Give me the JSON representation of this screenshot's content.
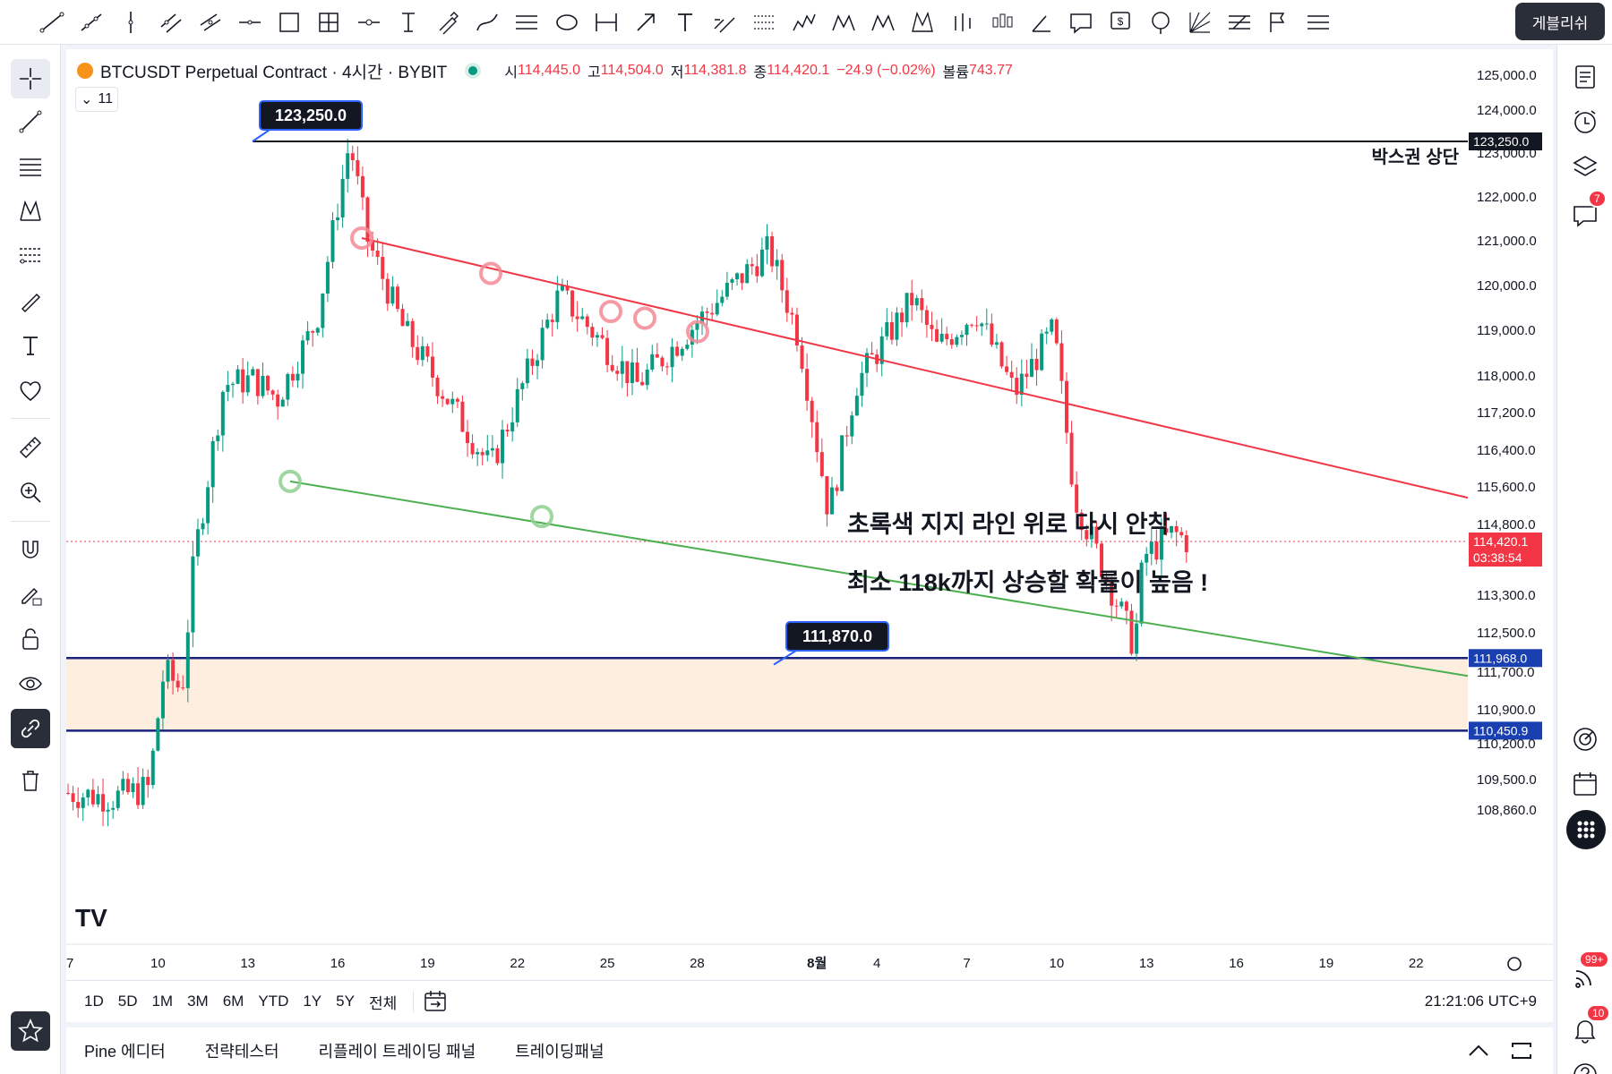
{
  "top_toolbar": {
    "publish_label": "게블리쉬",
    "icons": [
      "trend-line-icon",
      "ray-icon",
      "vertical-line-icon",
      "parallel-channel-icon",
      "regression-icon",
      "horizontal-line-icon",
      "rectangle-icon",
      "crosshair-box-icon",
      "horizontal-ray-icon",
      "text-anchor-icon",
      "brush-icon",
      "path-icon",
      "fib-retracement-icon",
      "ellipse-icon",
      "price-range-icon",
      "arrow-icon",
      "text-icon",
      "long-position-icon",
      "fib-channel-icon",
      "elliott-wave-icon",
      "abcd-pattern-icon",
      "abcd-wave-icon",
      "xabcd-pattern-icon",
      "bars-pattern-icon",
      "candles-pattern-icon",
      "angle-icon",
      "callout-icon",
      "price-note-icon",
      "star-note-icon",
      "gann-fan-icon",
      "date-range-icon",
      "flag-icon",
      "menu-icon"
    ]
  },
  "legend": {
    "symbol": "BTCUSDT Perpetual Contract · 4시간 · BYBIT",
    "open_label": "시",
    "open": "114,445.0",
    "high_label": "고",
    "high": "114,504.0",
    "low_label": "저",
    "low": "114,381.8",
    "close_label": "종",
    "close": "114,420.1",
    "change": "−24.9 (−0.02%)",
    "volume_label": "볼륨",
    "volume": "743.77",
    "indicator_count": "11"
  },
  "chart_data": {
    "type": "candlestick",
    "symbol": "BTCUSDT",
    "interval": "4시간",
    "exchange": "BYBIT",
    "ylim": [
      108500,
      125500
    ],
    "y_ticks": [
      "125,000.0",
      "124,000.0",
      "123,000.0",
      "122,000.0",
      "121,000.0",
      "120,000.0",
      "119,000.0",
      "118,000.0",
      "117,200.0",
      "116,400.0",
      "115,600.0",
      "114,800.0",
      "113,300.0",
      "112,500.0",
      "111,700.0",
      "110,900.0",
      "110,200.0",
      "109,500.0",
      "108,860.0"
    ],
    "x_ticks": [
      "7",
      "10",
      "13",
      "16",
      "19",
      "22",
      "25",
      "28",
      "8월",
      "4",
      "7",
      "10",
      "13",
      "16",
      "19",
      "22"
    ],
    "current_price": "114,420.1",
    "countdown": "03:38:54",
    "price_tags": {
      "box_top": "123,250.0",
      "zone_top": "111,968.0",
      "zone_bottom": "110,450.9"
    },
    "callouts": {
      "high": "123,250.0",
      "low": "111,870.0"
    },
    "box_top_label": "박스권 상단",
    "annotations": [
      "초록색 지지 라인 위로 다시 안착",
      "최소 118k까지 상승할 확률이 높음 !"
    ],
    "swing_points": [
      {
        "day": 14.1,
        "price": 116000
      },
      {
        "day": 16.4,
        "price": 119800
      },
      {
        "day": 19.0,
        "price": 117800
      },
      {
        "day": 21.2,
        "price": 119300
      },
      {
        "day": 23.4,
        "price": 120800
      },
      {
        "day": 24.4,
        "price": 118800
      },
      {
        "day": 25.4,
        "price": 115000
      },
      {
        "day": 26.3,
        "price": 117800
      },
      {
        "day": 28.2,
        "price": 119700
      },
      {
        "day": 29.0,
        "price": 118600
      },
      {
        "day": 30.3,
        "price": 119400
      },
      {
        "day": 31.6,
        "price": 117600
      },
      {
        "day": 32.9,
        "price": 119000
      },
      {
        "day": 33.6,
        "price": 115400
      },
      {
        "day": 34.2,
        "price": 114400
      },
      {
        "day": 35.6,
        "price": 112200
      },
      {
        "day": 35.9,
        "price": 114100
      },
      {
        "day": 36.9,
        "price": 114600
      },
      {
        "day": 37.4,
        "price": 114420
      }
    ],
    "colors": {
      "up": "#089981",
      "down": "#f23645",
      "resistance": "#f23645",
      "support": "#4caf50",
      "zone": "#fdeee0",
      "zone_line": "#1a237e"
    }
  },
  "range_bar": {
    "ranges": [
      "1D",
      "5D",
      "1M",
      "3M",
      "6M",
      "YTD",
      "1Y",
      "5Y",
      "전체"
    ],
    "clock": "21:21:06 UTC+9"
  },
  "bottom_panel": {
    "tabs": [
      "Pine 에디터",
      "전략테스터",
      "리플레이 트레이딩 패널",
      "트레이딩패널"
    ]
  },
  "right_sidebar": {
    "badges": {
      "chat": "7",
      "news": "99+",
      "alerts": "10"
    }
  }
}
